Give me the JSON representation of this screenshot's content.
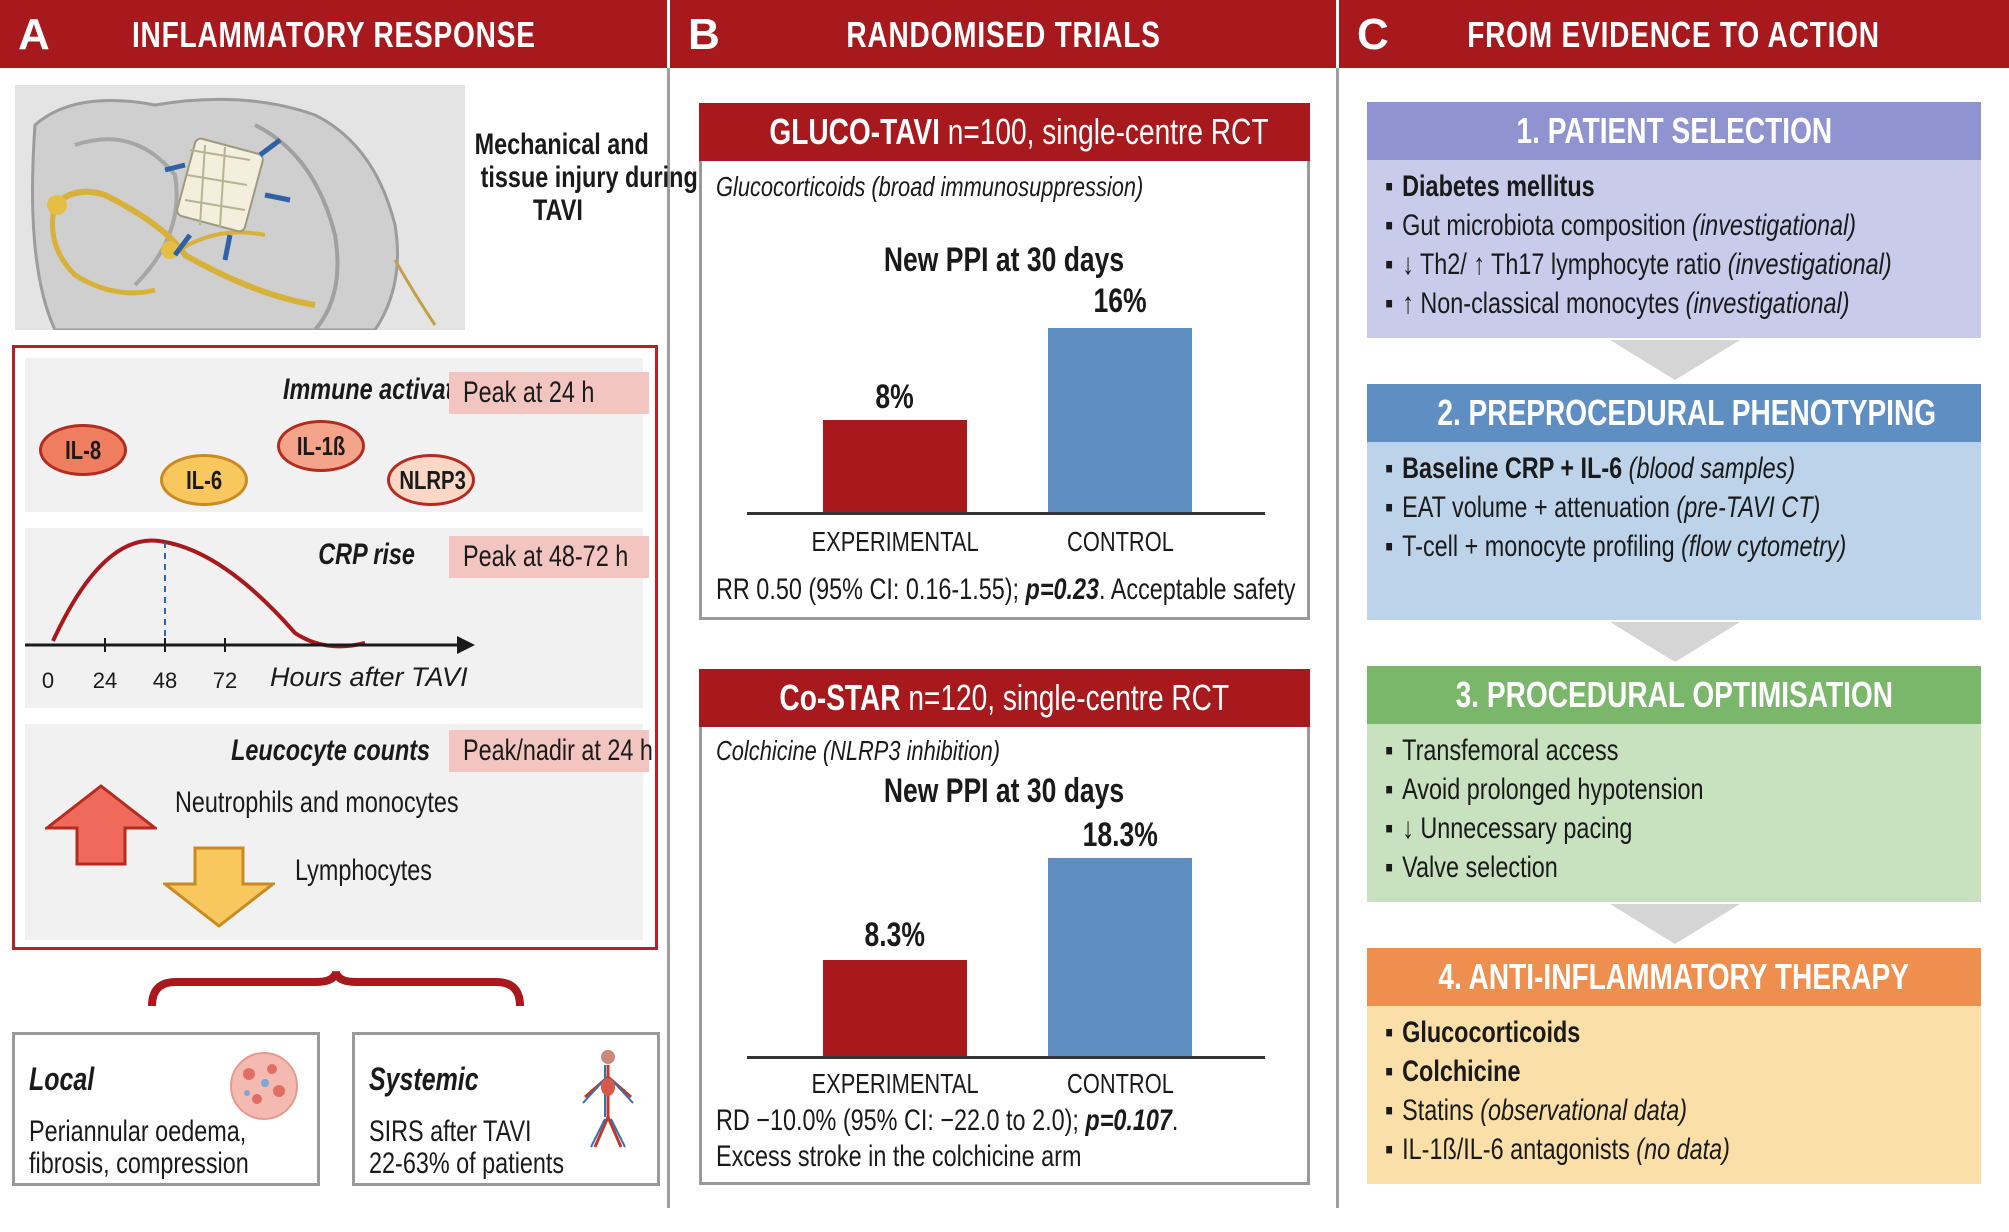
{
  "panels": {
    "a": {
      "letter": "A",
      "title": "INFLAMMATORY RESPONSE"
    },
    "b": {
      "letter": "B",
      "title": "RANDOMISED TRIALS"
    },
    "c": {
      "letter": "C",
      "title": "FROM EVIDENCE TO ACTION"
    }
  },
  "inflammatory": {
    "injury_caption": [
      "Mechanical and",
      "tissue injury during",
      "TAVI"
    ],
    "immune": {
      "label": "Immune activation",
      "peak": "Peak at 24 h",
      "cytokines": [
        "IL-8",
        "IL-6",
        "IL-1ß",
        "NLRP3"
      ]
    },
    "crp": {
      "label": "CRP rise",
      "peak": "Peak at 48-72 h",
      "ticks": [
        "0",
        "24",
        "48",
        "72"
      ],
      "axis_label": "Hours after TAVI"
    },
    "leucocyte": {
      "label": "Leucocyte counts",
      "peak": "Peak/nadir at 24 h",
      "up_text": "Neutrophils and monocytes",
      "down_text": "Lymphocytes"
    },
    "local": {
      "title": "Local",
      "lines": [
        "Periannular oedema,",
        "fibrosis, compression"
      ]
    },
    "systemic": {
      "title": "Systemic",
      "lines": [
        "SIRS after TAVI",
        "22-63% of patients"
      ]
    }
  },
  "trials": [
    {
      "name": "GLUCO-TAVI",
      "design": "n=100, single-centre RCT",
      "intervention": "Glucocorticoids (broad immunosuppression)",
      "outcome": "New PPI at 30 days",
      "arms": [
        "EXPERIMENTAL",
        "CONTROL"
      ],
      "values": [
        8,
        16
      ],
      "value_labels": [
        "8%",
        "16%"
      ],
      "stat_prefix": "RR 0.50 (95% CI: 0.16-1.55); ",
      "stat_p": "p=0.23",
      "stat_suffix": ". Acceptable safety"
    },
    {
      "name": "Co-STAR",
      "design": "n=120, single-centre RCT",
      "intervention": "Colchicine (NLRP3 inhibition)",
      "outcome": "New PPI at 30 days",
      "arms": [
        "EXPERIMENTAL",
        "CONTROL"
      ],
      "values": [
        8.3,
        18.3
      ],
      "value_labels": [
        "8.3%",
        "18.3%"
      ],
      "stat_prefix": "RD −10.0% (95% CI: −22.0 to 2.0); ",
      "stat_p": "p=0.107",
      "stat_suffix": ".",
      "stat_line2": "Excess stroke in the colchicine arm"
    }
  ],
  "chart_data": [
    {
      "type": "bar",
      "title": "New PPI at 30 days",
      "categories": [
        "EXPERIMENTAL",
        "CONTROL"
      ],
      "values": [
        8,
        16
      ]
    },
    {
      "type": "bar",
      "title": "New PPI at 30 days",
      "categories": [
        "EXPERIMENTAL",
        "CONTROL"
      ],
      "values": [
        8.3,
        18.3
      ]
    }
  ],
  "steps": [
    {
      "title": "1. PATIENT SELECTION",
      "items": [
        {
          "text": "Diabetes mellitus",
          "bold": true,
          "note": ""
        },
        {
          "text": "Gut microbiota composition ",
          "bold": false,
          "note": "(investigational)"
        },
        {
          "text": "↓ Th2/ ↑ Th17 lymphocyte ratio ",
          "bold": false,
          "note": "(investigational)"
        },
        {
          "text": "↑ Non-classical monocytes ",
          "bold": false,
          "note": "(investigational)"
        }
      ]
    },
    {
      "title": "2. PREPROCEDURAL PHENOTYPING",
      "items": [
        {
          "text": "Baseline CRP + IL-6 ",
          "bold": true,
          "note": "(blood samples)"
        },
        {
          "text": "EAT volume + attenuation ",
          "bold": false,
          "note": "(pre-TAVI CT)"
        },
        {
          "text": "T-cell + monocyte profiling ",
          "bold": false,
          "note": "(flow cytometry)"
        }
      ]
    },
    {
      "title": "3. PROCEDURAL OPTIMISATION",
      "items": [
        {
          "text": "Transfemoral access",
          "bold": false,
          "note": ""
        },
        {
          "text": "Avoid prolonged hypotension",
          "bold": false,
          "note": ""
        },
        {
          "text": "↓ Unnecessary pacing",
          "bold": false,
          "note": ""
        },
        {
          "text": "Valve selection",
          "bold": false,
          "note": ""
        }
      ]
    },
    {
      "title": "4. ANTI-INFLAMMATORY THERAPY",
      "items": [
        {
          "text": "Glucocorticoids",
          "bold": true,
          "note": ""
        },
        {
          "text": "Colchicine",
          "bold": true,
          "note": ""
        },
        {
          "text": "Statins ",
          "bold": false,
          "note": "(observational data)"
        },
        {
          "text": "IL-1ß/IL-6 antagonists ",
          "bold": false,
          "note": "(no data)"
        }
      ]
    }
  ],
  "colors": {
    "red": "#a7191c",
    "blue_bar": "#5f8fc2",
    "step1_head": "#8f93cf",
    "step1_body": "#c8cbe9",
    "step2_head": "#5f8fc2",
    "step2_body": "#bcd3ea",
    "step3_head": "#7ab76b",
    "step3_body": "#c8e1bf",
    "step4_head": "#ef8f4f",
    "step4_body": "#fbdfa8"
  }
}
